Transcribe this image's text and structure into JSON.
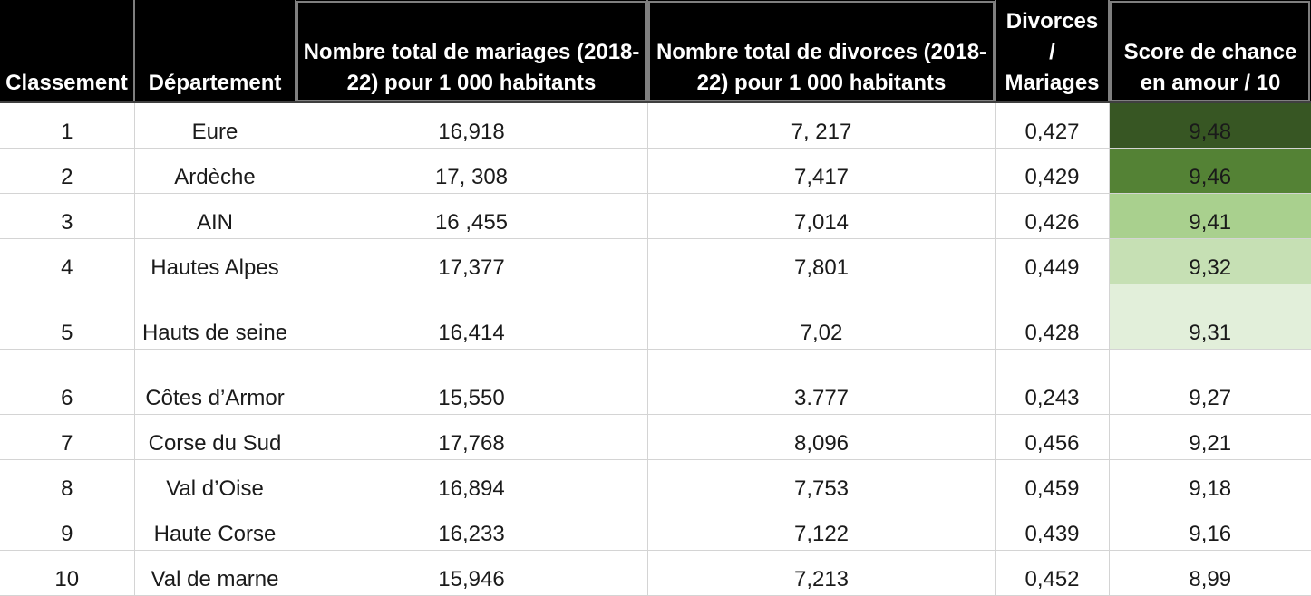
{
  "headers": {
    "rank": "Classement",
    "department": "Département",
    "marriages": "Nombre total de mariages (2018-22) pour 1 000 habitants",
    "divorces": "Nombre total de divorces (2018-22) pour 1 000 habitants",
    "ratio_l1": "Divorces",
    "ratio_l2": "/",
    "ratio_l3": "Mariages",
    "score": "Score de chance en amour / 10"
  },
  "rows": [
    {
      "rank": "1",
      "department": "Eure",
      "marriages": "16,918",
      "divorces": "7, 217",
      "ratio": "0,427",
      "score": "9,48",
      "score_color": "#375623"
    },
    {
      "rank": "2",
      "department": "Ardèche",
      "marriages": "17, 308",
      "divorces": "7,417",
      "ratio": "0,429",
      "score": "9,46",
      "score_color": "#548235"
    },
    {
      "rank": "3",
      "department": "AIN",
      "marriages": "16 ,455",
      "divorces": "7,014",
      "ratio": "0,426",
      "score": "9,41",
      "score_color": "#a9d08e"
    },
    {
      "rank": "4",
      "department": "Hautes Alpes",
      "marriages": "17,377",
      "divorces": "7,801",
      "ratio": "0,449",
      "score": "9,32",
      "score_color": "#c6e0b4"
    },
    {
      "rank": "5",
      "department": "Hauts de seine",
      "marriages": "16,414",
      "divorces": "7,02",
      "ratio": "0,428",
      "score": "9,31",
      "score_color": "#e2efda"
    },
    {
      "rank": "6",
      "department": "Côtes d’Armor",
      "marriages": "15,550",
      "divorces": "3.777",
      "ratio": "0,243",
      "score": "9,27",
      "score_color": "#ffffff"
    },
    {
      "rank": "7",
      "department": "Corse du Sud",
      "marriages": "17,768",
      "divorces": "8,096",
      "ratio": "0,456",
      "score": "9,21",
      "score_color": "#ffffff"
    },
    {
      "rank": "8",
      "department": "Val d’Oise",
      "marriages": "16,894",
      "divorces": "7,753",
      "ratio": "0,459",
      "score": "9,18",
      "score_color": "#ffffff"
    },
    {
      "rank": "9",
      "department": "Haute Corse",
      "marriages": "16,233",
      "divorces": "7,122",
      "ratio": "0,439",
      "score": "9,16",
      "score_color": "#ffffff"
    },
    {
      "rank": "10",
      "department": "Val de marne",
      "marriages": "15,946",
      "divorces": "7,213",
      "ratio": "0,452",
      "score": "8,99",
      "score_color": "#ffffff"
    }
  ]
}
